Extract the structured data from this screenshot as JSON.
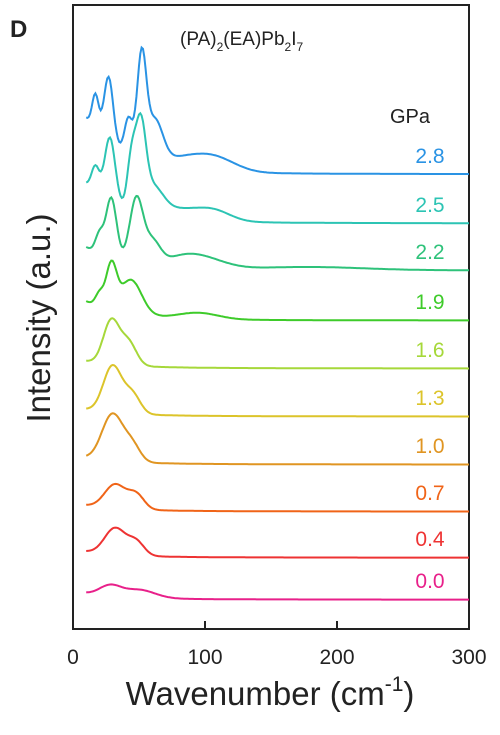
{
  "panel_label": "D",
  "chart_data": {
    "type": "line",
    "title_main": "(PA)",
    "title_sub1": "2",
    "title_mid": "(EA)Pb",
    "title_sub2": "2",
    "title_end": "I",
    "title_sub3": "7",
    "xlabel_main": "Wavenumber (cm",
    "xlabel_sup": "-1",
    "xlabel_end": ")",
    "ylabel": "Intensity (a.u.)",
    "legend_title": "GPa",
    "xlim": [
      0,
      300
    ],
    "xticks": [
      0,
      100,
      200,
      300
    ],
    "series": [
      {
        "name": "0.0",
        "color": "#e8208a"
      },
      {
        "name": "0.4",
        "color": "#ee3333"
      },
      {
        "name": "0.7",
        "color": "#f06418"
      },
      {
        "name": "1.0",
        "color": "#e09522"
      },
      {
        "name": "1.3",
        "color": "#dcc42a"
      },
      {
        "name": "1.6",
        "color": "#a6d83a"
      },
      {
        "name": "1.9",
        "color": "#3ecb2a"
      },
      {
        "name": "2.2",
        "color": "#2ec27a"
      },
      {
        "name": "2.5",
        "color": "#2cc4b4"
      },
      {
        "name": "2.8",
        "color": "#2a93e4"
      }
    ]
  }
}
